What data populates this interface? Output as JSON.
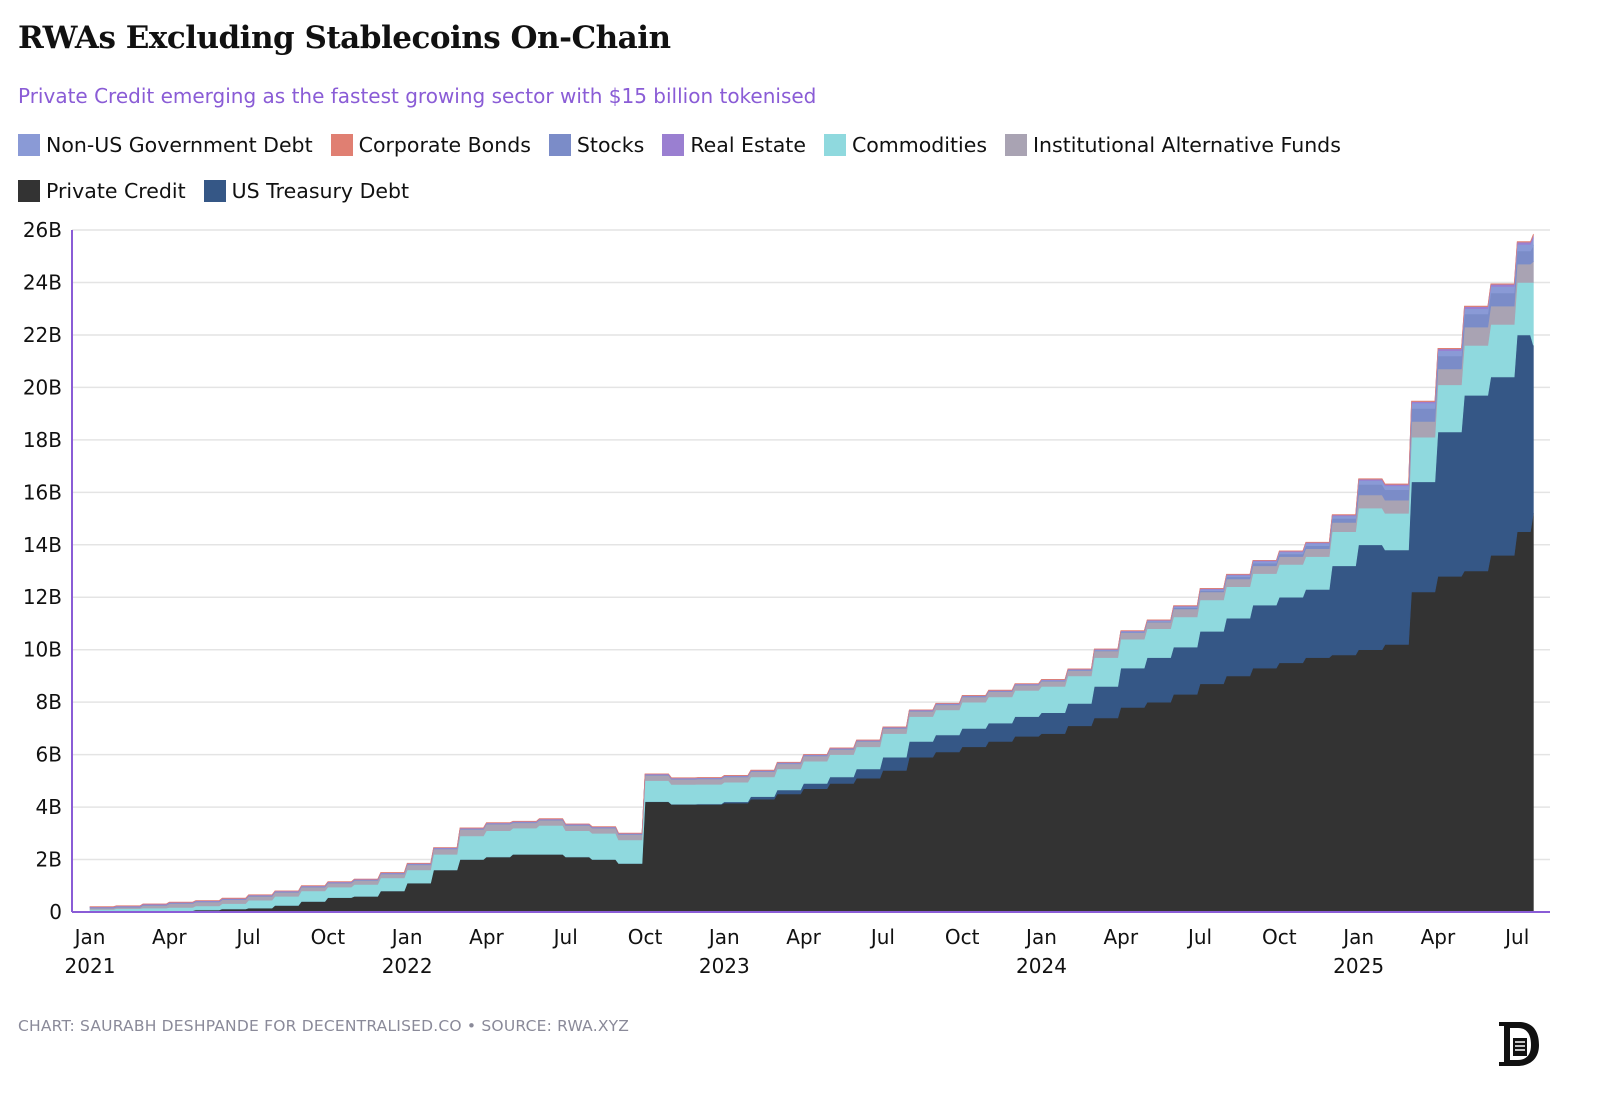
{
  "chart_data": {
    "type": "area",
    "stacked": true,
    "title": "RWAs Excluding Stablecoins On-Chain",
    "subtitle": "Private Credit emerging as the fastest growing sector with $15 billion tokenised",
    "xlabel": "",
    "ylabel": "",
    "ylim": [
      0,
      26
    ],
    "yticks": [
      "0",
      "2B",
      "4B",
      "6B",
      "8B",
      "10B",
      "12B",
      "14B",
      "16B",
      "18B",
      "20B",
      "22B",
      "24B",
      "26B"
    ],
    "xticks": [
      {
        "m": "Jan",
        "y": "2021",
        "date": "2021-01"
      },
      {
        "m": "Apr",
        "y": "",
        "date": "2021-04"
      },
      {
        "m": "Jul",
        "y": "",
        "date": "2021-07"
      },
      {
        "m": "Oct",
        "y": "",
        "date": "2021-10"
      },
      {
        "m": "Jan",
        "y": "2022",
        "date": "2022-01"
      },
      {
        "m": "Apr",
        "y": "",
        "date": "2022-04"
      },
      {
        "m": "Jul",
        "y": "",
        "date": "2022-07"
      },
      {
        "m": "Oct",
        "y": "",
        "date": "2022-10"
      },
      {
        "m": "Jan",
        "y": "2023",
        "date": "2023-01"
      },
      {
        "m": "Apr",
        "y": "",
        "date": "2023-04"
      },
      {
        "m": "Jul",
        "y": "",
        "date": "2023-07"
      },
      {
        "m": "Oct",
        "y": "",
        "date": "2023-10"
      },
      {
        "m": "Jan",
        "y": "2024",
        "date": "2024-01"
      },
      {
        "m": "Apr",
        "y": "",
        "date": "2024-04"
      },
      {
        "m": "Jul",
        "y": "",
        "date": "2024-07"
      },
      {
        "m": "Oct",
        "y": "",
        "date": "2024-10"
      },
      {
        "m": "Jan",
        "y": "2025",
        "date": "2025-01"
      },
      {
        "m": "Apr",
        "y": "",
        "date": "2025-04"
      },
      {
        "m": "Jul",
        "y": "",
        "date": "2025-07"
      }
    ],
    "grid": true,
    "legend_placement": "top-left",
    "x": [
      "2021-01",
      "2021-02",
      "2021-03",
      "2021-04",
      "2021-05",
      "2021-06",
      "2021-07",
      "2021-08",
      "2021-09",
      "2021-10",
      "2021-11",
      "2021-12",
      "2022-01",
      "2022-02",
      "2022-03",
      "2022-04",
      "2022-05",
      "2022-06",
      "2022-07",
      "2022-08",
      "2022-09",
      "2022-10",
      "2022-11",
      "2022-12",
      "2023-01",
      "2023-02",
      "2023-03",
      "2023-04",
      "2023-05",
      "2023-06",
      "2023-07",
      "2023-08",
      "2023-09",
      "2023-10",
      "2023-11",
      "2023-12",
      "2024-01",
      "2024-02",
      "2024-03",
      "2024-04",
      "2024-05",
      "2024-06",
      "2024-07",
      "2024-08",
      "2024-09",
      "2024-10",
      "2024-11",
      "2024-12",
      "2025-01",
      "2025-02",
      "2025-03",
      "2025-04",
      "2025-05",
      "2025-06",
      "2025-07",
      "2025-07-20"
    ],
    "series": [
      {
        "name": "Private Credit",
        "color": "#333333",
        "values": [
          0.02,
          0.03,
          0.05,
          0.05,
          0.08,
          0.12,
          0.15,
          0.25,
          0.4,
          0.55,
          0.6,
          0.8,
          1.1,
          1.6,
          2.0,
          2.1,
          2.2,
          2.2,
          2.1,
          2.0,
          1.85,
          4.2,
          4.1,
          4.1,
          4.15,
          4.3,
          4.5,
          4.7,
          4.9,
          5.1,
          5.4,
          5.9,
          6.1,
          6.3,
          6.5,
          6.7,
          6.8,
          7.1,
          7.4,
          7.8,
          8.0,
          8.3,
          8.7,
          9.0,
          9.3,
          9.5,
          9.7,
          9.8,
          10.0,
          10.2,
          12.2,
          12.8,
          13.0,
          13.6,
          14.5,
          15.2
        ]
      },
      {
        "name": "US Treasury Debt",
        "color": "#355786",
        "values": [
          0,
          0,
          0,
          0,
          0,
          0,
          0,
          0,
          0,
          0,
          0,
          0,
          0,
          0,
          0,
          0,
          0,
          0,
          0,
          0,
          0,
          0.01,
          0.01,
          0.02,
          0.05,
          0.1,
          0.15,
          0.2,
          0.25,
          0.35,
          0.5,
          0.6,
          0.65,
          0.7,
          0.7,
          0.75,
          0.8,
          0.85,
          1.2,
          1.5,
          1.7,
          1.8,
          2.0,
          2.2,
          2.4,
          2.5,
          2.6,
          3.4,
          4.0,
          3.6,
          4.2,
          5.5,
          6.7,
          6.8,
          7.5,
          6.4
        ]
      },
      {
        "name": "Commodities",
        "color": "#8fd9de",
        "values": [
          0.08,
          0.1,
          0.1,
          0.12,
          0.15,
          0.2,
          0.3,
          0.35,
          0.4,
          0.4,
          0.45,
          0.5,
          0.5,
          0.6,
          0.9,
          1.0,
          1.0,
          1.1,
          1.0,
          1.0,
          0.9,
          0.8,
          0.75,
          0.75,
          0.75,
          0.75,
          0.8,
          0.85,
          0.85,
          0.85,
          0.9,
          0.95,
          0.95,
          1.0,
          1.0,
          1.0,
          1.0,
          1.05,
          1.1,
          1.1,
          1.1,
          1.15,
          1.2,
          1.2,
          1.2,
          1.25,
          1.25,
          1.3,
          1.4,
          1.4,
          1.7,
          1.8,
          1.9,
          2.0,
          2.0,
          2.4
        ]
      },
      {
        "name": "Institutional Alternative Funds",
        "color": "#a9a3b3",
        "values": [
          0.05,
          0.05,
          0.1,
          0.15,
          0.15,
          0.15,
          0.15,
          0.15,
          0.15,
          0.15,
          0.15,
          0.15,
          0.2,
          0.2,
          0.25,
          0.25,
          0.2,
          0.2,
          0.2,
          0.2,
          0.2,
          0.2,
          0.2,
          0.2,
          0.2,
          0.2,
          0.2,
          0.2,
          0.2,
          0.2,
          0.2,
          0.2,
          0.2,
          0.2,
          0.2,
          0.2,
          0.2,
          0.2,
          0.25,
          0.25,
          0.25,
          0.3,
          0.3,
          0.3,
          0.3,
          0.3,
          0.3,
          0.35,
          0.5,
          0.5,
          0.6,
          0.6,
          0.7,
          0.7,
          0.7,
          0.8
        ]
      },
      {
        "name": "Stocks",
        "color": "#7b8cc8",
        "values": [
          0.02,
          0.02,
          0.02,
          0.02,
          0.02,
          0.02,
          0.02,
          0.02,
          0.02,
          0.02,
          0.02,
          0.02,
          0.02,
          0.02,
          0.02,
          0.02,
          0.02,
          0.02,
          0.02,
          0.02,
          0.02,
          0.02,
          0.02,
          0.02,
          0.02,
          0.02,
          0.02,
          0.02,
          0.02,
          0.02,
          0.02,
          0.02,
          0.02,
          0.02,
          0.02,
          0.02,
          0.02,
          0.02,
          0.02,
          0.02,
          0.02,
          0.05,
          0.05,
          0.08,
          0.1,
          0.1,
          0.12,
          0.15,
          0.4,
          0.4,
          0.5,
          0.5,
          0.5,
          0.5,
          0.5,
          0.6
        ]
      },
      {
        "name": "Non-US Government Debt",
        "color": "#8a9ad6",
        "values": [
          0.01,
          0.01,
          0.01,
          0.01,
          0.01,
          0.01,
          0.01,
          0.01,
          0.01,
          0.01,
          0.01,
          0.01,
          0.01,
          0.01,
          0.01,
          0.01,
          0.01,
          0.01,
          0.01,
          0.01,
          0.01,
          0.01,
          0.01,
          0.01,
          0.01,
          0.01,
          0.01,
          0.01,
          0.01,
          0.01,
          0.01,
          0.01,
          0.01,
          0.01,
          0.01,
          0.01,
          0.02,
          0.02,
          0.03,
          0.03,
          0.04,
          0.05,
          0.05,
          0.06,
          0.07,
          0.08,
          0.09,
          0.1,
          0.15,
          0.15,
          0.2,
          0.2,
          0.2,
          0.25,
          0.25,
          0.3
        ]
      },
      {
        "name": "Real Estate",
        "color": "#9a7fd1",
        "values": [
          0.02,
          0.02,
          0.02,
          0.02,
          0.02,
          0.02,
          0.02,
          0.02,
          0.02,
          0.02,
          0.02,
          0.02,
          0.02,
          0.02,
          0.02,
          0.02,
          0.02,
          0.02,
          0.02,
          0.02,
          0.02,
          0.02,
          0.02,
          0.02,
          0.02,
          0.02,
          0.02,
          0.02,
          0.02,
          0.02,
          0.02,
          0.02,
          0.02,
          0.02,
          0.02,
          0.02,
          0.02,
          0.02,
          0.02,
          0.02,
          0.02,
          0.02,
          0.03,
          0.03,
          0.03,
          0.03,
          0.03,
          0.04,
          0.05,
          0.05,
          0.06,
          0.07,
          0.08,
          0.08,
          0.09,
          0.1
        ]
      },
      {
        "name": "Corporate Bonds",
        "color": "#e07f72",
        "values": [
          0.01,
          0.01,
          0.01,
          0.01,
          0.01,
          0.01,
          0.01,
          0.01,
          0.01,
          0.01,
          0.01,
          0.01,
          0.01,
          0.01,
          0.01,
          0.01,
          0.01,
          0.01,
          0.01,
          0.01,
          0.01,
          0.01,
          0.01,
          0.01,
          0.01,
          0.01,
          0.01,
          0.01,
          0.01,
          0.01,
          0.01,
          0.01,
          0.01,
          0.01,
          0.01,
          0.01,
          0.01,
          0.01,
          0.01,
          0.01,
          0.01,
          0.01,
          0.01,
          0.01,
          0.01,
          0.01,
          0.01,
          0.01,
          0.02,
          0.02,
          0.02,
          0.02,
          0.02,
          0.02,
          0.02,
          0.05
        ]
      }
    ],
    "legend": [
      {
        "name": "Non-US Government Debt",
        "color": "#8a9ad6"
      },
      {
        "name": "Corporate Bonds",
        "color": "#e07f72"
      },
      {
        "name": "Stocks",
        "color": "#7b8cc8"
      },
      {
        "name": "Real Estate",
        "color": "#9a7fd1"
      },
      {
        "name": "Commodities",
        "color": "#8fd9de"
      },
      {
        "name": "Institutional Alternative Funds",
        "color": "#a9a3b3"
      },
      {
        "name": "Private Credit",
        "color": "#333333"
      },
      {
        "name": "US Treasury Debt",
        "color": "#355786"
      }
    ],
    "axis_color": "#8a5cd6"
  },
  "footer": "CHART: SAURABH DESHPANDE FOR DECENTRALISED.CO • SOURCE: RWA.XYZ",
  "logo": "D"
}
